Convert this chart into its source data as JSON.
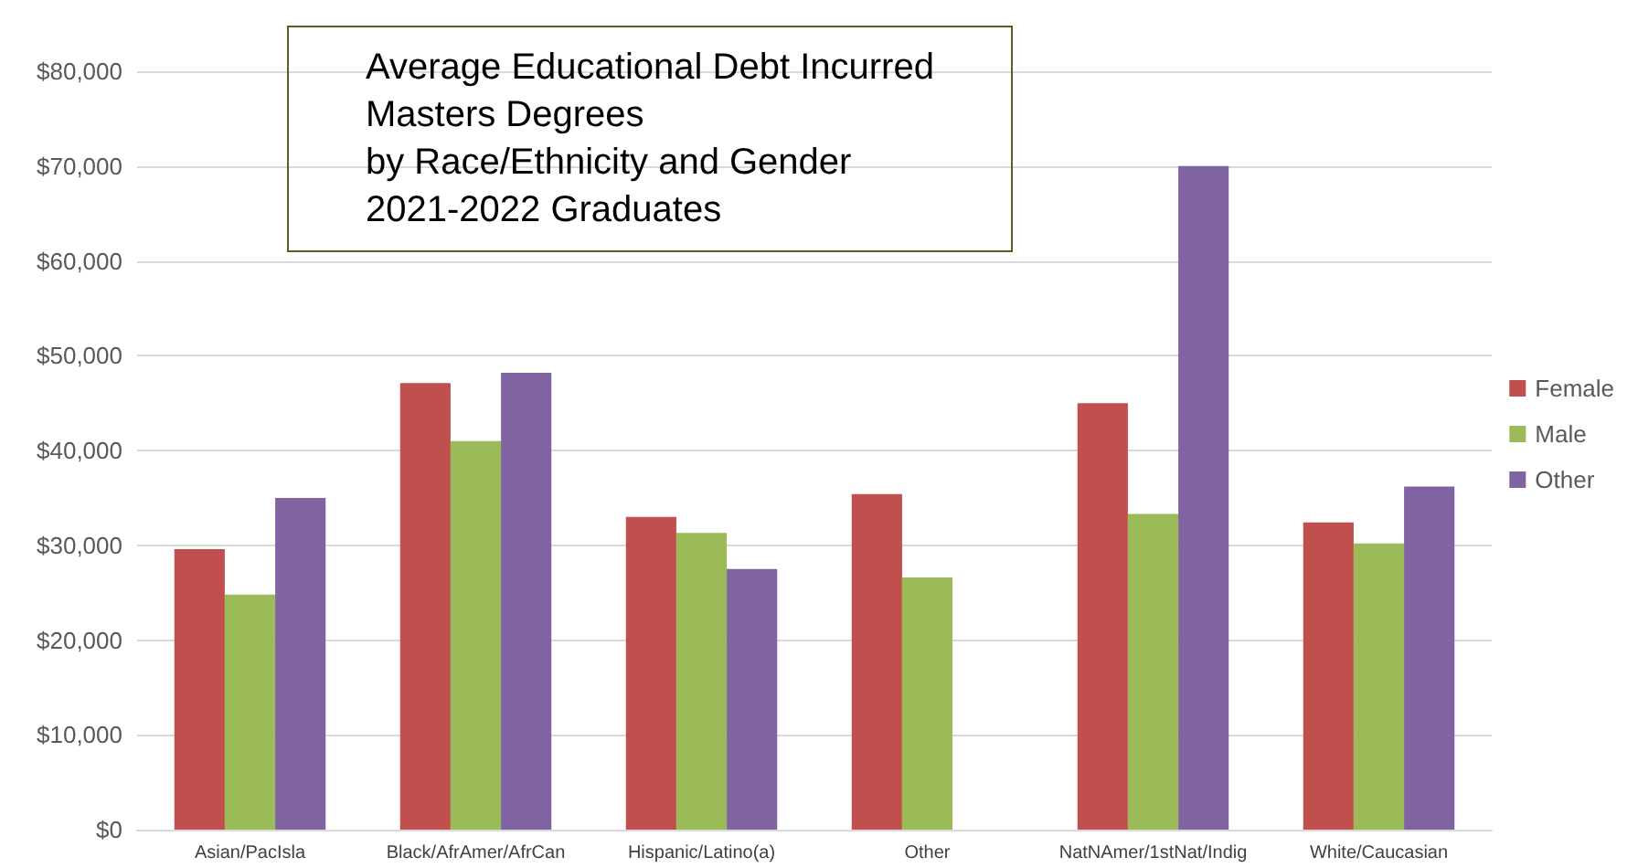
{
  "chart_data": {
    "type": "bar",
    "title": "Average Educational Debt Incurred\nMasters Degrees\nby Race/Ethnicity and Gender\n2021-2022 Graduates",
    "categories": [
      "Asian/PacIsla",
      "Black/AfrAmer/AfrCan",
      "Hispanic/Latino(a)",
      "Other",
      "NatNAmer/1stNat/Indig",
      "White/Caucasian"
    ],
    "series": [
      {
        "name": "Female",
        "color": "#c0504d",
        "values": [
          29600,
          47100,
          33000,
          35400,
          45000,
          32400
        ]
      },
      {
        "name": "Male",
        "color": "#9bbb59",
        "values": [
          24800,
          41000,
          31300,
          26600,
          33300,
          30200
        ]
      },
      {
        "name": "Other",
        "color": "#8064a2",
        "values": [
          35000,
          48200,
          27500,
          null,
          70000,
          36200
        ]
      }
    ],
    "ylim": [
      0,
      80000
    ],
    "yticks": [
      {
        "value": 0,
        "label": "$0"
      },
      {
        "value": 10000,
        "label": "$10,000"
      },
      {
        "value": 20000,
        "label": "$20,000"
      },
      {
        "value": 30000,
        "label": "$30,000"
      },
      {
        "value": 40000,
        "label": "$40,000"
      },
      {
        "value": 50000,
        "label": "$50,000"
      },
      {
        "value": 60000,
        "label": "$60,000"
      },
      {
        "value": 70000,
        "label": "$70,000"
      },
      {
        "value": 80000,
        "label": "$80,000"
      }
    ],
    "grid": "y",
    "legend": "right"
  }
}
